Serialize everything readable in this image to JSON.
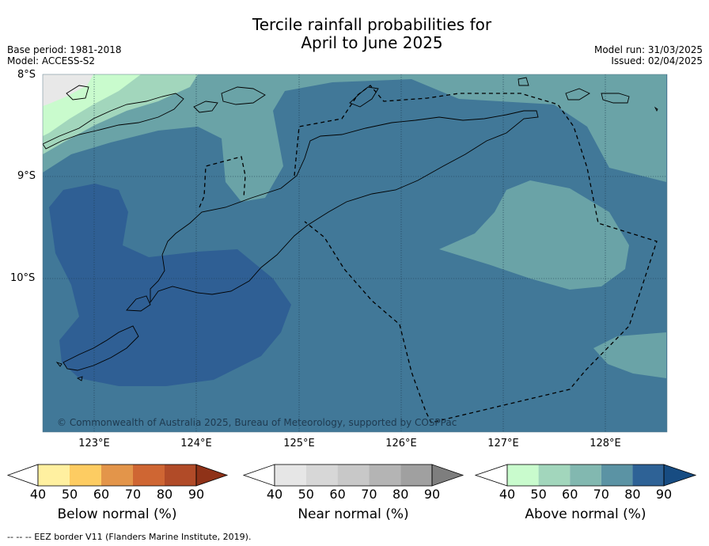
{
  "title_line1": "Tercile rainfall probabilities for",
  "title_line2": "April to June 2025",
  "meta_left": [
    "Base period: 1981-2018",
    "Model: ACCESS-S2"
  ],
  "meta_right": [
    "Model run: 31/03/2025",
    "Issued: 02/04/2025"
  ],
  "lat_labels": [
    "8°S",
    "9°S",
    "10°S"
  ],
  "lon_labels": [
    "123°E",
    "124°E",
    "125°E",
    "126°E",
    "127°E",
    "128°E"
  ],
  "copyright": "© Commonwealth of Australia 2025, Bureau of Meteorology, supported by COSPPac",
  "footer": "--  --  -- EEZ border V11 (Flanders Marine Institute, 2019).",
  "colorbars": [
    {
      "title": "Below normal (%)",
      "ticks": [
        "40",
        "50",
        "60",
        "70",
        "80",
        "90"
      ],
      "colors": [
        "#ffffff",
        "#fff0a0",
        "#fdcc62",
        "#e3954a",
        "#cf6633",
        "#b14b28",
        "#8f3218"
      ]
    },
    {
      "title": "Near normal (%)",
      "ticks": [
        "40",
        "50",
        "60",
        "70",
        "80",
        "90"
      ],
      "colors": [
        "#ffffff",
        "#e6e6e6",
        "#d7d7d7",
        "#c8c8c8",
        "#b4b4b4",
        "#a0a0a0",
        "#7e7e7e"
      ]
    },
    {
      "title": "Above normal (%)",
      "ticks": [
        "40",
        "50",
        "60",
        "70",
        "80",
        "90"
      ],
      "colors": [
        "#ffffff",
        "#c9fbcd",
        "#a2d6bc",
        "#82b8b0",
        "#5b93a4",
        "#2e6296",
        "#174c82"
      ]
    }
  ],
  "map_colors": {
    "above_50": "#c9fbcd",
    "above_60": "#a2d6bc",
    "above_70": "#6aa3a7",
    "above_80": "#417898",
    "above_90": "#2f5f94",
    "no_data": "#e8e8e8"
  }
}
